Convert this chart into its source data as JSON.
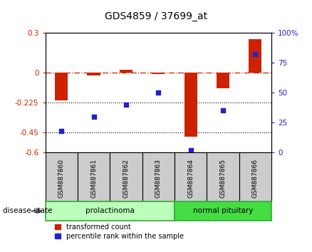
{
  "title": "GDS4859 / 37699_at",
  "samples": [
    "GSM887860",
    "GSM887861",
    "GSM887862",
    "GSM887863",
    "GSM887864",
    "GSM887865",
    "GSM887866"
  ],
  "transformed_count": [
    -0.21,
    -0.02,
    0.02,
    -0.01,
    -0.48,
    -0.12,
    0.25
  ],
  "percentile_rank": [
    18,
    30,
    40,
    50,
    2,
    35,
    82
  ],
  "groups": [
    {
      "label": "prolactinoma",
      "start": 0,
      "end": 3,
      "color": "#bbffbb",
      "border": "#33aa33"
    },
    {
      "label": "normal pituitary",
      "start": 4,
      "end": 6,
      "color": "#44dd44",
      "border": "#33aa33"
    }
  ],
  "ylim_left": [
    -0.6,
    0.3
  ],
  "ylim_right": [
    0,
    100
  ],
  "yticks_left": [
    0.3,
    0,
    -0.225,
    -0.45,
    -0.6
  ],
  "yticks_right": [
    100,
    75,
    50,
    25,
    0
  ],
  "bar_color": "#cc2200",
  "dot_color": "#2222cc",
  "dotted_lines": [
    -0.225,
    -0.45
  ],
  "legend_items": [
    {
      "label": "transformed count",
      "color": "#cc2200"
    },
    {
      "label": "percentile rank within the sample",
      "color": "#2222cc"
    }
  ],
  "disease_state_label": "disease state",
  "sample_box_color": "#cccccc",
  "bar_width": 0.4
}
